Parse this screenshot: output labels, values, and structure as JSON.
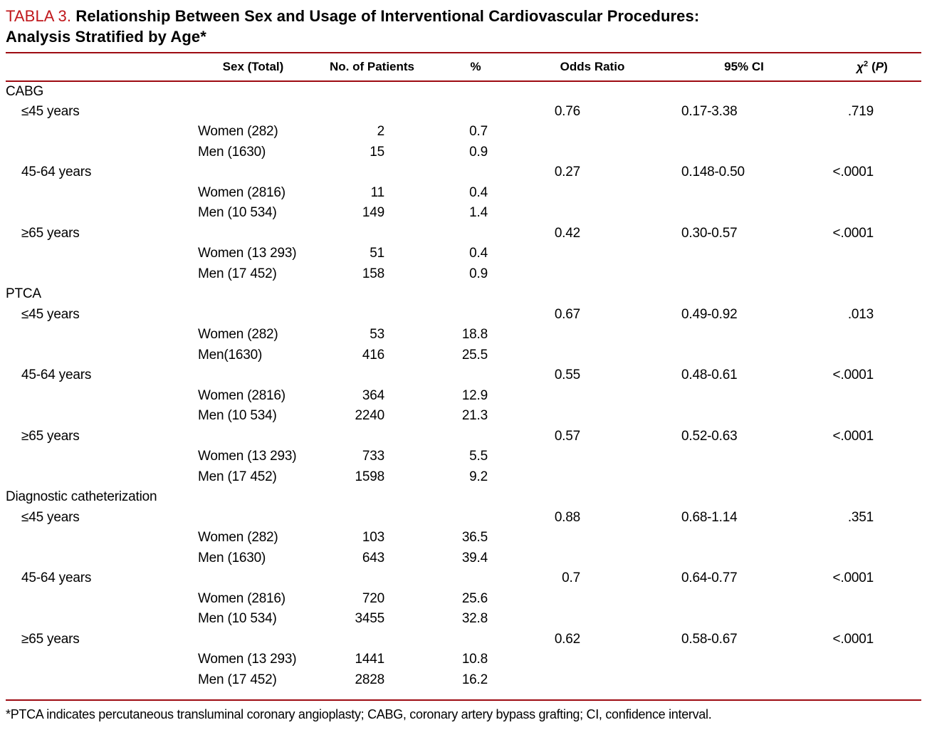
{
  "title": {
    "tag": "TABLA 3.",
    "line1": "Relationship Between Sex and Usage of Interventional Cardiovascular Procedures:",
    "line2": "Analysis Stratified by Age*"
  },
  "accent": {
    "title_red": "#c0181c",
    "rule_red": "#9e0b12"
  },
  "columns": {
    "sex": "Sex (Total)",
    "patients": "No. of Patients",
    "percent": "%",
    "odds_ratio": "Odds Ratio",
    "ci": "95% CI",
    "chi": {
      "symbol": "χ",
      "sup": "2",
      "p_open": "(",
      "p_label": "P",
      "p_close": ")"
    }
  },
  "table": {
    "sections": [
      {
        "name": "CABG",
        "groups": [
          {
            "age": "≤45 years",
            "odds_ratio": "0.76",
            "ci": "0.17-3.38",
            "p": ".719",
            "rows": [
              {
                "sex": "Women (282)",
                "patients": "2",
                "percent": "0.7"
              },
              {
                "sex": "Men (1630)",
                "patients": "15",
                "percent": "0.9"
              }
            ]
          },
          {
            "age": "45-64 years",
            "odds_ratio": "0.27",
            "ci": "0.148-0.50",
            "p": "<.0001",
            "rows": [
              {
                "sex": "Women (2816)",
                "patients": "11",
                "percent": "0.4"
              },
              {
                "sex": "Men (10 534)",
                "patients": "149",
                "percent": "1.4"
              }
            ]
          },
          {
            "age": "≥65 years",
            "odds_ratio": "0.42",
            "ci": "0.30-0.57",
            "p": "<.0001",
            "rows": [
              {
                "sex": "Women (13 293)",
                "patients": "51",
                "percent": "0.4"
              },
              {
                "sex": "Men (17 452)",
                "patients": "158",
                "percent": "0.9"
              }
            ]
          }
        ]
      },
      {
        "name": "PTCA",
        "groups": [
          {
            "age": "≤45 years",
            "odds_ratio": "0.67",
            "ci": "0.49-0.92",
            "p": ".013",
            "rows": [
              {
                "sex": "Women (282)",
                "patients": "53",
                "percent": "18.8"
              },
              {
                "sex": "Men(1630)",
                "patients": "416",
                "percent": "25.5"
              }
            ]
          },
          {
            "age": "45-64 years",
            "odds_ratio": "0.55",
            "ci": "0.48-0.61",
            "p": "<.0001",
            "rows": [
              {
                "sex": "Women (2816)",
                "patients": "364",
                "percent": "12.9"
              },
              {
                "sex": "Men (10 534)",
                "patients": "2240",
                "percent": "21.3"
              }
            ]
          },
          {
            "age": "≥65 years",
            "odds_ratio": "0.57",
            "ci": "0.52-0.63",
            "p": "<.0001",
            "rows": [
              {
                "sex": "Women (13 293)",
                "patients": "733",
                "percent": "5.5"
              },
              {
                "sex": "Men (17 452)",
                "patients": "1598",
                "percent": "9.2"
              }
            ]
          }
        ]
      },
      {
        "name": "Diagnostic catheterization",
        "groups": [
          {
            "age": "≤45 years",
            "odds_ratio": "0.88",
            "ci": "0.68-1.14",
            "p": ".351",
            "rows": [
              {
                "sex": "Women (282)",
                "patients": "103",
                "percent": "36.5"
              },
              {
                "sex": "Men (1630)",
                "patients": "643",
                "percent": "39.4"
              }
            ]
          },
          {
            "age": "45-64 years",
            "odds_ratio": "0.7",
            "ci": "0.64-0.77",
            "p": "<.0001",
            "rows": [
              {
                "sex": "Women (2816)",
                "patients": "720",
                "percent": "25.6"
              },
              {
                "sex": "Men (10 534)",
                "patients": "3455",
                "percent": "32.8"
              }
            ]
          },
          {
            "age": "≥65 years",
            "odds_ratio": "0.62",
            "ci": "0.58-0.67",
            "p": "<.0001",
            "rows": [
              {
                "sex": "Women (13 293)",
                "patients": "1441",
                "percent": "10.8"
              },
              {
                "sex": "Men (17 452)",
                "patients": "2828",
                "percent": "16.2"
              }
            ]
          }
        ]
      }
    ]
  },
  "footnote": "*PTCA indicates percutaneous transluminal coronary angioplasty; CABG, coronary artery bypass grafting; CI, confidence interval."
}
